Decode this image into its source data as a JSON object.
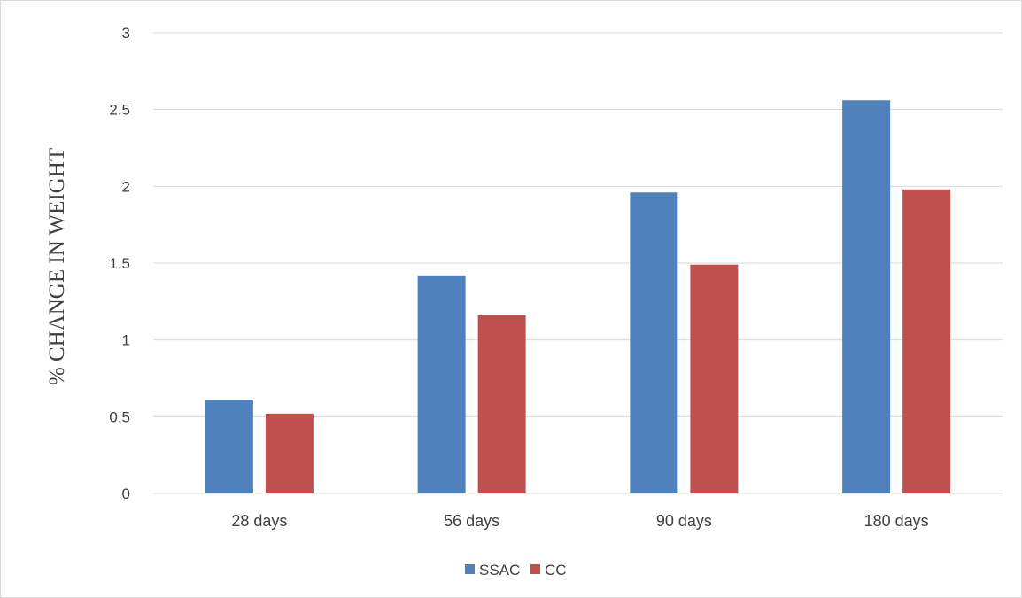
{
  "chart_data": {
    "type": "bar",
    "categories": [
      "28 days",
      "56 days",
      "90 days",
      "180 days"
    ],
    "series": [
      {
        "name": "SSAC",
        "color": "#4f81bd",
        "values": [
          0.61,
          1.42,
          1.96,
          2.56
        ]
      },
      {
        "name": "CC",
        "color": "#c0504d",
        "values": [
          0.52,
          1.16,
          1.49,
          1.98
        ]
      }
    ],
    "ylabel": "% CHANGE IN WEIGHT",
    "xlabel": "",
    "ylim": [
      0,
      3
    ],
    "yticks": [
      "0",
      "0.5",
      "1",
      "1.5",
      "2",
      "2.5",
      "3"
    ],
    "grid": true,
    "legend_position": "bottom"
  }
}
